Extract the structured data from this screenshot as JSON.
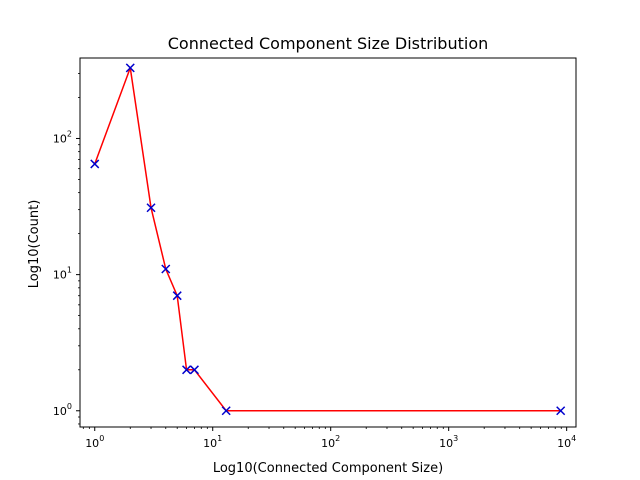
{
  "chart_data": {
    "type": "line",
    "title": "Connected Component Size Distribution",
    "xlabel": "Log10(Connected Component Size)",
    "ylabel": "Log10(Count)",
    "xscale": "log",
    "yscale": "log",
    "xlim": [
      0.75,
      12000
    ],
    "ylim": [
      0.76,
      390
    ],
    "grid": false,
    "x_ticks": [
      {
        "value": 1,
        "base": "10",
        "exp": "0"
      },
      {
        "value": 10,
        "base": "10",
        "exp": "1"
      },
      {
        "value": 100,
        "base": "10",
        "exp": "2"
      },
      {
        "value": 1000,
        "base": "10",
        "exp": "3"
      },
      {
        "value": 10000,
        "base": "10",
        "exp": "4"
      }
    ],
    "y_ticks": [
      {
        "value": 1,
        "base": "10",
        "exp": "0"
      },
      {
        "value": 10,
        "base": "10",
        "exp": "1"
      },
      {
        "value": 100,
        "base": "10",
        "exp": "2"
      }
    ],
    "series": [
      {
        "line_color": "#ff0000",
        "marker_color": "#0000cc",
        "marker": "x",
        "x": [
          1,
          2,
          3,
          4,
          5,
          6,
          7,
          13,
          8900
        ],
        "y": [
          65,
          330,
          31,
          11,
          7,
          2,
          2,
          1,
          1
        ]
      }
    ]
  }
}
